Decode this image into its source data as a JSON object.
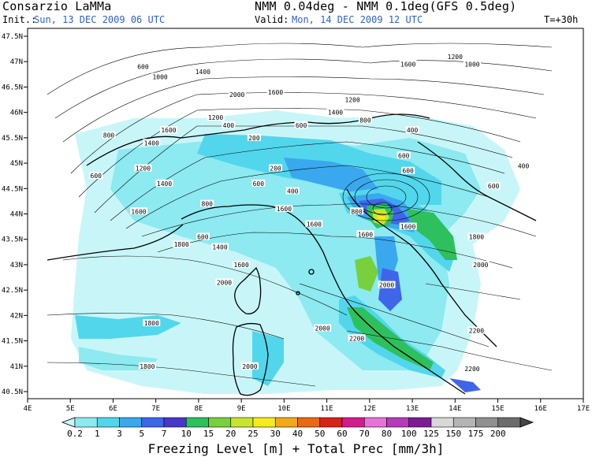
{
  "header": {
    "org": "Consarzio LaMMa",
    "model": "NMM 0.04deg - NMM 0.1deg(GFS 0.5deg)",
    "init_label": "Init.:",
    "init_value": "Sun, 13 DEC 2009  06 UTC",
    "valid_label": "Valid:",
    "valid_value": "Mon, 14 DEC 2009  12 UTC",
    "forecast_step": "T=+30h"
  },
  "map": {
    "lon_ticks": [
      "4E",
      "5E",
      "6E",
      "7E",
      "8E",
      "9E",
      "10E",
      "11E",
      "12E",
      "13E",
      "14E",
      "15E",
      "16E",
      "17E"
    ],
    "lat_ticks": [
      "47.5N",
      "47N",
      "46.5N",
      "46N",
      "45.5N",
      "45N",
      "44.5N",
      "44N",
      "43.5N",
      "43N",
      "42.5N",
      "42N",
      "41.5N",
      "41N",
      "40.5N"
    ],
    "contour_labels": [
      {
        "text": "1000",
        "lon": 14.4,
        "lat": 46.95
      },
      {
        "text": "1200",
        "lon": 14.0,
        "lat": 47.1
      },
      {
        "text": "1600",
        "lon": 12.9,
        "lat": 46.95
      },
      {
        "text": "600",
        "lon": 6.7,
        "lat": 46.9
      },
      {
        "text": "1000",
        "lon": 7.1,
        "lat": 46.7
      },
      {
        "text": "1400",
        "lon": 8.1,
        "lat": 46.8
      },
      {
        "text": "2000",
        "lon": 8.9,
        "lat": 46.35
      },
      {
        "text": "1600",
        "lon": 9.8,
        "lat": 46.4
      },
      {
        "text": "1200",
        "lon": 11.6,
        "lat": 46.25
      },
      {
        "text": "1400",
        "lon": 11.2,
        "lat": 46.0
      },
      {
        "text": "1200",
        "lon": 8.4,
        "lat": 45.9
      },
      {
        "text": "1600",
        "lon": 7.3,
        "lat": 45.65
      },
      {
        "text": "800",
        "lon": 5.9,
        "lat": 45.55
      },
      {
        "text": "1400",
        "lon": 6.9,
        "lat": 45.4
      },
      {
        "text": "400",
        "lon": 8.7,
        "lat": 45.75
      },
      {
        "text": "600",
        "lon": 10.4,
        "lat": 45.75
      },
      {
        "text": "800",
        "lon": 11.9,
        "lat": 45.85
      },
      {
        "text": "200",
        "lon": 9.3,
        "lat": 45.5
      },
      {
        "text": "400",
        "lon": 13.0,
        "lat": 45.65
      },
      {
        "text": "600",
        "lon": 5.6,
        "lat": 44.75
      },
      {
        "text": "1200",
        "lon": 6.7,
        "lat": 44.9
      },
      {
        "text": "1400",
        "lon": 7.2,
        "lat": 44.6
      },
      {
        "text": "1600",
        "lon": 6.6,
        "lat": 44.05
      },
      {
        "text": "200",
        "lon": 9.8,
        "lat": 44.9
      },
      {
        "text": "600",
        "lon": 9.4,
        "lat": 44.6
      },
      {
        "text": "400",
        "lon": 10.2,
        "lat": 44.45
      },
      {
        "text": "800",
        "lon": 8.2,
        "lat": 44.2
      },
      {
        "text": "1600",
        "lon": 10.0,
        "lat": 44.1
      },
      {
        "text": "600",
        "lon": 12.8,
        "lat": 45.15
      },
      {
        "text": "600",
        "lon": 12.9,
        "lat": 44.85
      },
      {
        "text": "800",
        "lon": 11.7,
        "lat": 44.05
      },
      {
        "text": "1600",
        "lon": 10.7,
        "lat": 43.8
      },
      {
        "text": "1600",
        "lon": 11.9,
        "lat": 43.6
      },
      {
        "text": "1600",
        "lon": 12.9,
        "lat": 43.75
      },
      {
        "text": "1800",
        "lon": 14.5,
        "lat": 43.55
      },
      {
        "text": "600",
        "lon": 14.9,
        "lat": 44.55
      },
      {
        "text": "400",
        "lon": 15.6,
        "lat": 44.95
      },
      {
        "text": "600",
        "lon": 8.1,
        "lat": 43.55
      },
      {
        "text": "1400",
        "lon": 8.5,
        "lat": 43.35
      },
      {
        "text": "1800",
        "lon": 7.6,
        "lat": 43.4
      },
      {
        "text": "1600",
        "lon": 9.0,
        "lat": 43.0
      },
      {
        "text": "2000",
        "lon": 8.6,
        "lat": 42.65
      },
      {
        "text": "1800",
        "lon": 6.9,
        "lat": 41.85
      },
      {
        "text": "2000",
        "lon": 10.9,
        "lat": 41.75
      },
      {
        "text": "2000",
        "lon": 12.4,
        "lat": 42.6
      },
      {
        "text": "2000",
        "lon": 14.6,
        "lat": 43.0
      },
      {
        "text": "2200",
        "lon": 11.7,
        "lat": 41.55
      },
      {
        "text": "2200",
        "lon": 14.5,
        "lat": 41.7
      },
      {
        "text": "1800",
        "lon": 6.8,
        "lat": 41.0
      },
      {
        "text": "2000",
        "lon": 9.2,
        "lat": 41.0
      },
      {
        "text": "2200",
        "lon": 14.4,
        "lat": 40.95
      }
    ]
  },
  "colorbar": {
    "labels": [
      "0.2",
      "1",
      "3",
      "5",
      "7",
      "10",
      "15",
      "20",
      "25",
      "30",
      "40",
      "50",
      "60",
      "70",
      "80",
      "100",
      "125",
      "150",
      "175",
      "200"
    ],
    "colors": [
      "#c8f6f8",
      "#8ceaf0",
      "#52d6ec",
      "#3aa8ee",
      "#3f66e8",
      "#4838c8",
      "#2ec05c",
      "#78d03c",
      "#c8e430",
      "#f4ec1c",
      "#f2a818",
      "#e86a14",
      "#d62418",
      "#d21c8c",
      "#e872d8",
      "#b43cb8",
      "#7c1c94",
      "#d8d8d8",
      "#b4b4b4",
      "#909090",
      "#6c6c6c",
      "#444444"
    ],
    "caption": "Freezing Level [m] + Total Prec [mm/3h]"
  }
}
